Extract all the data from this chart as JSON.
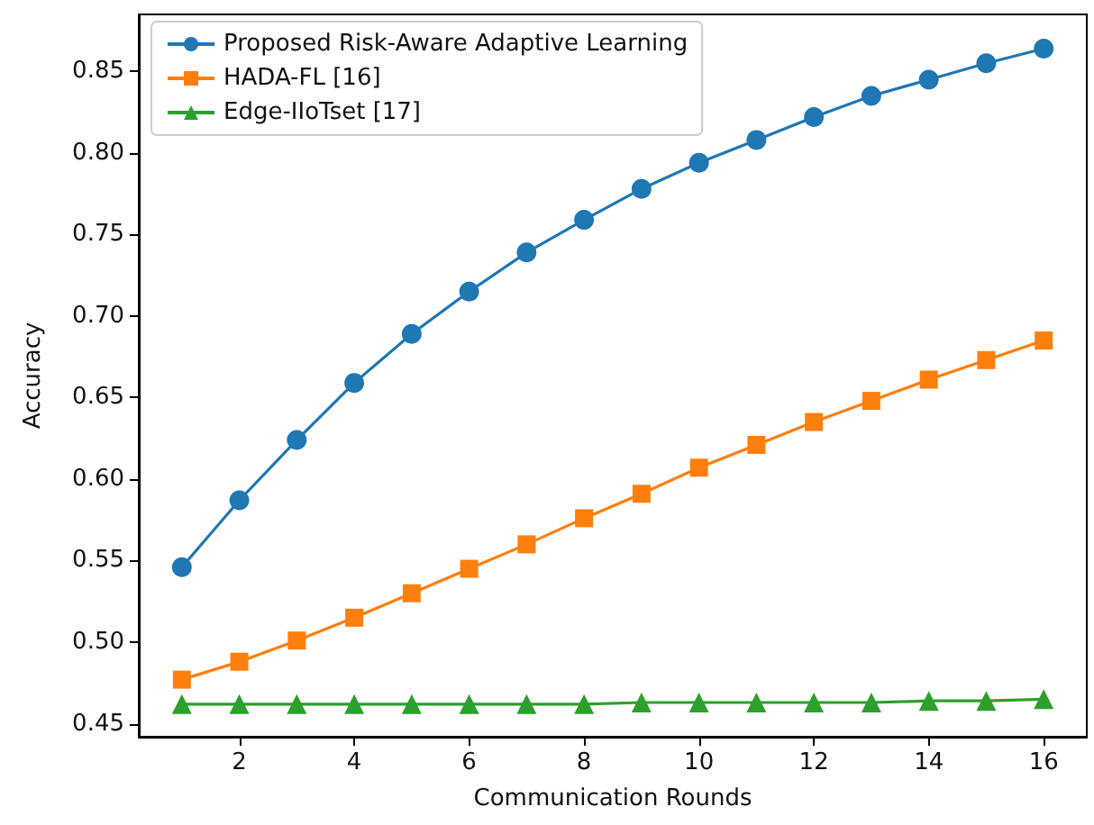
{
  "chart_data": {
    "type": "line",
    "xlabel": "Communication Rounds",
    "ylabel": "Accuracy",
    "x": [
      1,
      2,
      3,
      4,
      5,
      6,
      7,
      8,
      9,
      10,
      11,
      12,
      13,
      14,
      15,
      16
    ],
    "series": [
      {
        "name": "Proposed Risk-Aware Adaptive Learning",
        "color": "#1f77b4",
        "marker": "circle",
        "values": [
          0.546,
          0.587,
          0.624,
          0.659,
          0.689,
          0.715,
          0.739,
          0.759,
          0.778,
          0.794,
          0.808,
          0.822,
          0.835,
          0.845,
          0.855,
          0.864
        ]
      },
      {
        "name": "HADA-FL [16]",
        "color": "#ff7f0e",
        "marker": "square",
        "values": [
          0.477,
          0.488,
          0.501,
          0.515,
          0.53,
          0.545,
          0.56,
          0.576,
          0.591,
          0.607,
          0.621,
          0.635,
          0.648,
          0.661,
          0.673,
          0.685
        ]
      },
      {
        "name": "Edge-IIoTset [17]",
        "color": "#2ca02c",
        "marker": "triangle",
        "values": [
          0.462,
          0.462,
          0.462,
          0.462,
          0.462,
          0.462,
          0.462,
          0.462,
          0.463,
          0.463,
          0.463,
          0.463,
          0.463,
          0.464,
          0.464,
          0.465
        ]
      }
    ],
    "xlim": [
      0.25,
      16.75
    ],
    "xticks": [
      2,
      4,
      6,
      8,
      10,
      12,
      14,
      16
    ],
    "ylim": [
      0.442,
      0.885
    ],
    "yticks": [
      0.45,
      {
        "value": 0.5,
        "label": "0.50"
      },
      0.55,
      {
        "value": 0.6,
        "label": "0.60"
      },
      0.65,
      {
        "value": 0.7,
        "label": "0.70"
      },
      0.75,
      {
        "value": 0.8,
        "label": "0.80"
      },
      0.85
    ],
    "grid": false,
    "legend": "top left",
    "line_style": "solid"
  }
}
